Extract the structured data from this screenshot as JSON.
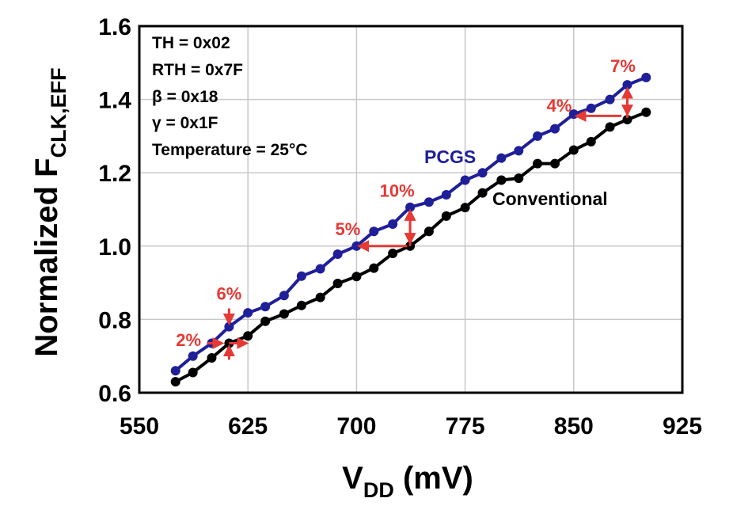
{
  "chart_data": {
    "type": "line",
    "xlabel": "V",
    "xlabel_sub": "DD",
    "xlabel_unit": " (mV)",
    "ylabel": "Normalized F",
    "ylabel_sub": "CLK,EFF",
    "xlim": [
      550,
      925
    ],
    "ylim": [
      0.6,
      1.6
    ],
    "xticks": [
      "550",
      "625",
      "700",
      "775",
      "850",
      "925"
    ],
    "yticks": [
      "0.6",
      "0.8",
      "1.0",
      "1.2",
      "1.4",
      "1.6"
    ],
    "grid": true,
    "parameters": [
      "TH   = 0x02",
      "RTH = 0x7F",
      "β = 0x18",
      "γ  = 0x1F",
      "Temperature = 25°C"
    ],
    "series": [
      {
        "name": "PCGS",
        "color": "#1f1f99",
        "points": [
          [
            575,
            0.66
          ],
          [
            587,
            0.7
          ],
          [
            600,
            0.735
          ],
          [
            612,
            0.78
          ],
          [
            625,
            0.818
          ],
          [
            637,
            0.835
          ],
          [
            650,
            0.865
          ],
          [
            662,
            0.918
          ],
          [
            675,
            0.938
          ],
          [
            687,
            0.978
          ],
          [
            700,
            1.0
          ],
          [
            712,
            1.04
          ],
          [
            725,
            1.06
          ],
          [
            737,
            1.106
          ],
          [
            750,
            1.12
          ],
          [
            762,
            1.14
          ],
          [
            775,
            1.18
          ],
          [
            787,
            1.2
          ],
          [
            800,
            1.24
          ],
          [
            812,
            1.26
          ],
          [
            825,
            1.3
          ],
          [
            837,
            1.32
          ],
          [
            850,
            1.36
          ],
          [
            862,
            1.376
          ],
          [
            875,
            1.4
          ],
          [
            887,
            1.44
          ],
          [
            900,
            1.46
          ]
        ]
      },
      {
        "name": "Conventional",
        "color": "#000000",
        "points": [
          [
            575,
            0.63
          ],
          [
            587,
            0.655
          ],
          [
            600,
            0.695
          ],
          [
            612,
            0.735
          ],
          [
            625,
            0.755
          ],
          [
            637,
            0.795
          ],
          [
            650,
            0.815
          ],
          [
            662,
            0.838
          ],
          [
            675,
            0.86
          ],
          [
            687,
            0.898
          ],
          [
            700,
            0.917
          ],
          [
            712,
            0.94
          ],
          [
            725,
            0.98
          ],
          [
            737,
            1.0
          ],
          [
            750,
            1.04
          ],
          [
            762,
            1.082
          ],
          [
            775,
            1.105
          ],
          [
            787,
            1.145
          ],
          [
            800,
            1.18
          ],
          [
            812,
            1.185
          ],
          [
            825,
            1.225
          ],
          [
            837,
            1.225
          ],
          [
            850,
            1.262
          ],
          [
            862,
            1.285
          ],
          [
            875,
            1.325
          ],
          [
            887,
            1.345
          ],
          [
            900,
            1.365
          ]
        ]
      }
    ],
    "annotations": [
      {
        "label": "2%",
        "color": "#e53935"
      },
      {
        "label": "6%",
        "color": "#e53935"
      },
      {
        "label": "5%",
        "color": "#e53935"
      },
      {
        "label": "10%",
        "color": "#e53935"
      },
      {
        "label": "4%",
        "color": "#e53935"
      },
      {
        "label": "7%",
        "color": "#e53935"
      }
    ]
  }
}
